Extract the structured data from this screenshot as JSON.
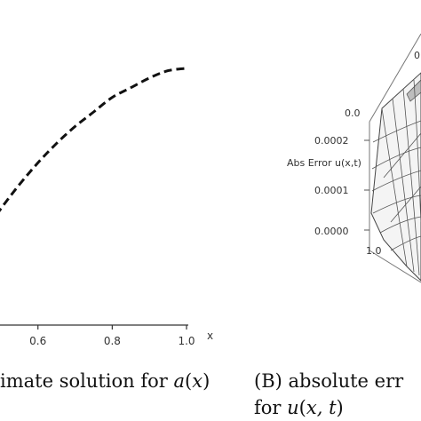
{
  "chart_data": [
    {
      "type": "line",
      "title": "",
      "xlabel": "x",
      "ylabel": "",
      "xlim": [
        0.45,
        1.0
      ],
      "ylim": [
        0.0,
        1.1
      ],
      "xticks": [
        "0.6",
        "0.8",
        "1.0"
      ],
      "series": [
        {
          "x": [
            0.45,
            0.5,
            0.55,
            0.6,
            0.65,
            0.7,
            0.75,
            0.8,
            0.85,
            0.9,
            0.95,
            1.0
          ],
          "values": [
            0.37,
            0.48,
            0.58,
            0.67,
            0.75,
            0.82,
            0.88,
            0.94,
            0.98,
            1.02,
            1.05,
            1.06
          ]
        }
      ],
      "caption": {
        "text": "imate solution for ",
        "math_fn": "a",
        "math_arg": "x"
      }
    },
    {
      "type": "surface3d",
      "zlabel": "Abs Error u(x,t)",
      "zticks": [
        "0.0002",
        "0.0001",
        "0.0000"
      ],
      "corner_labels": [
        "0.0",
        "1.0"
      ],
      "top_label": "0",
      "caption": {
        "line1": "(B)  absolute  err",
        "line2_text": "for ",
        "math_fn": "u",
        "math_arg": "x, t"
      }
    }
  ]
}
